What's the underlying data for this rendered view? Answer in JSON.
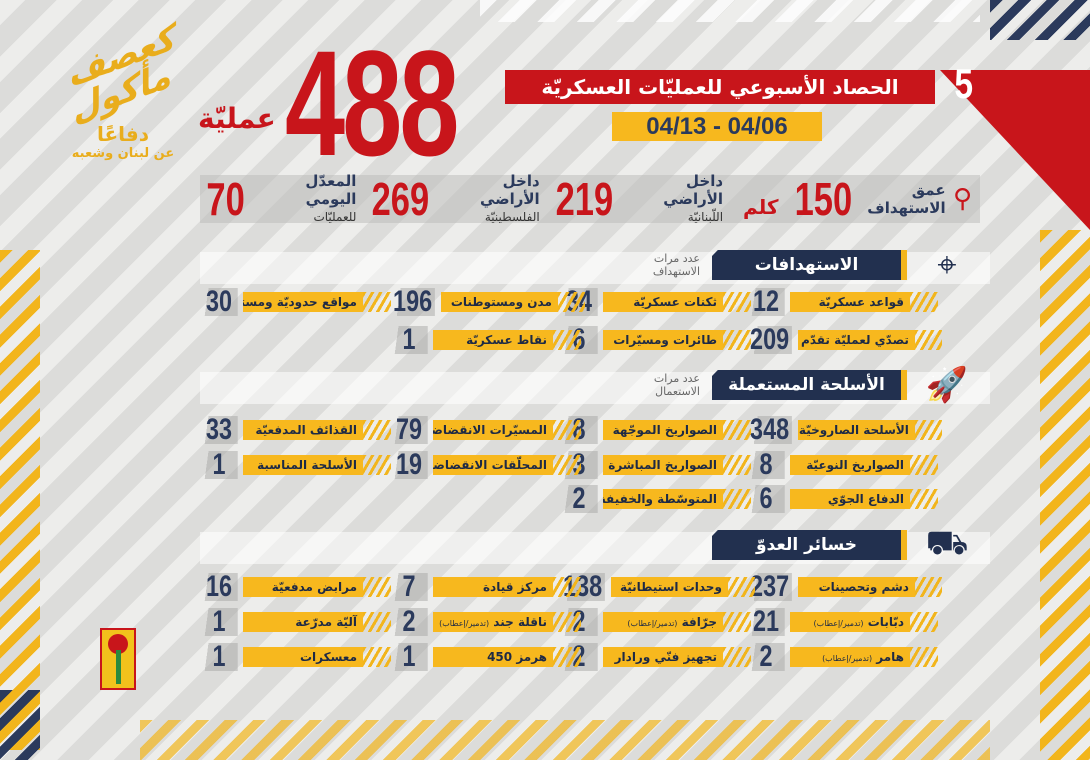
{
  "colors": {
    "red": "#c8151b",
    "navy": "#22304f",
    "yellow": "#f7b81e"
  },
  "logo": {
    "art_text": "كعصف مأكول",
    "line1": "دفاعًا",
    "line2": "عن لبنان وشعبه"
  },
  "header": {
    "issue": "5",
    "title": "الحصاد الأسبوعي للعمليّات العسكريّة",
    "date_range": "04/13 - 04/06",
    "total": "488",
    "total_label": "عمليّة"
  },
  "stats": [
    {
      "label_top": "عمق",
      "label_bottom": "الاستهداف",
      "value": "150",
      "unit": "كلم"
    },
    {
      "label_top": "داخل الأراضي",
      "label_bottom": "اللّبنانيّة",
      "value": "219"
    },
    {
      "label_top": "داخل الأراضي",
      "label_bottom": "الفلسطينيّة",
      "value": "269"
    },
    {
      "label_top": "المعدّل اليومي",
      "label_bottom": "للعمليّات",
      "value": "70"
    }
  ],
  "sections": [
    {
      "title": "الاستهدافات",
      "count_label": "عدد مرات الاستهداف",
      "icon": "crosshair-icon",
      "items": [
        {
          "value": "12",
          "label": "قواعد عسكريّة"
        },
        {
          "value": "34",
          "label": "ثكنات عسكريّة"
        },
        {
          "value": "196",
          "label": "مدن ومستوطنات"
        },
        {
          "value": "30",
          "label": "مواقع حدوديّة ومستحدثة"
        },
        {
          "value": "209",
          "label": "تصدّي لعمليّة تقدّم"
        },
        {
          "value": "6",
          "label": "طائرات ومسيّرات"
        },
        {
          "value": "1",
          "label": "نقاط عسكريّة"
        }
      ]
    },
    {
      "title": "الأسلحة المستعملة",
      "count_label": "عدد مرات الاستعمال",
      "icon": "missiles-icon",
      "items": [
        {
          "value": "348",
          "label": "الأسلحة الصاروخيّة"
        },
        {
          "value": "8",
          "label": "الصواريخ الموجّهة"
        },
        {
          "value": "79",
          "label": "المسيّرات الانقضاضيّة"
        },
        {
          "value": "33",
          "label": "القذائف المدفعيّة"
        },
        {
          "value": "8",
          "label": "الصواريخ النوعيّة"
        },
        {
          "value": "3",
          "label": "الصواريخ المباشرة"
        },
        {
          "value": "19",
          "label": "المحلّقات الانقضاضيّة"
        },
        {
          "value": "1",
          "label": "الأسلحة المناسبة"
        },
        {
          "value": "6",
          "label": "الدفاع الجوّي"
        },
        {
          "value": "2",
          "label": "المتوسّطة والخفيفة"
        }
      ]
    },
    {
      "title": "خسائر العدوّ",
      "icon": "tank-icon",
      "items": [
        {
          "value": "237",
          "label": "دشم وتحصينات"
        },
        {
          "value": "138",
          "label": "وحدات استيطانيّة"
        },
        {
          "value": "7",
          "label": "مركز قيادة"
        },
        {
          "value": "16",
          "label": "مرابض مدفعيّة"
        },
        {
          "value": "21",
          "label": "دبّابات",
          "note": "(تدمير/إعطاب)"
        },
        {
          "value": "2",
          "label": "جرّافة",
          "note": "(تدمير/إعطاب)"
        },
        {
          "value": "2",
          "label": "ناقلة جند",
          "note": "(تدمير/إعطاب)"
        },
        {
          "value": "1",
          "label": "آليّة مدرّعة"
        },
        {
          "value": "2",
          "label": "هامر",
          "note": "(تدمير/إعطاب)"
        },
        {
          "value": "2",
          "label": "تجهيز فنّي ورادار"
        },
        {
          "value": "1",
          "label": "هرمز 450"
        },
        {
          "value": "1",
          "label": "معسكرات"
        }
      ]
    }
  ]
}
